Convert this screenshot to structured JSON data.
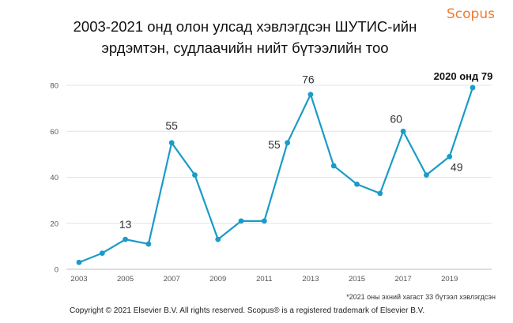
{
  "title_line1": "2003-2021 онд олон улсад хэвлэгдсэн ШУТИС-ийн",
  "title_line2": "эрдэмтэн, судлаачийн нийт бүтээлийн тоо",
  "brand": "Scopus",
  "footnote": "*2021 оны эхний хагаст 33 бүтээл хэвлэгдсэн",
  "copyright": "Copyright © 2021 Elsevier B.V. All rights reserved. Scopus® is a registered trademark of Elsevier B.V.",
  "colors": {
    "line": "#1a9bc8",
    "brand": "#f07a2e"
  },
  "chart_data": {
    "type": "line",
    "x": [
      2003,
      2004,
      2005,
      2006,
      2007,
      2008,
      2009,
      2010,
      2011,
      2012,
      2013,
      2014,
      2015,
      2016,
      2017,
      2018,
      2019,
      2020
    ],
    "series": [
      {
        "values": [
          3,
          7,
          13,
          11,
          55,
          41,
          13,
          21,
          21,
          55,
          76,
          45,
          37,
          33,
          60,
          41,
          49,
          79
        ]
      }
    ],
    "xticks": [
      "2003",
      "2005",
      "2007",
      "2009",
      "2011",
      "2013",
      "2015",
      "2017",
      "2019"
    ],
    "yticks": [
      "0",
      "20",
      "40",
      "60",
      "80"
    ],
    "ylim": [
      0,
      80
    ],
    "xlim": [
      2003,
      2020
    ],
    "grid": true,
    "annotations": [
      {
        "x": 2005,
        "y": 13,
        "text": "13"
      },
      {
        "x": 2007,
        "y": 55,
        "text": "55"
      },
      {
        "x": 2012,
        "y": 55,
        "text": "55"
      },
      {
        "x": 2013,
        "y": 76,
        "text": "76"
      },
      {
        "x": 2017,
        "y": 60,
        "text": "60"
      },
      {
        "x": 2019,
        "y": 49,
        "text": "49"
      },
      {
        "x": 2020,
        "y": 79,
        "text": "2020 онд 79",
        "bold": true
      }
    ]
  }
}
